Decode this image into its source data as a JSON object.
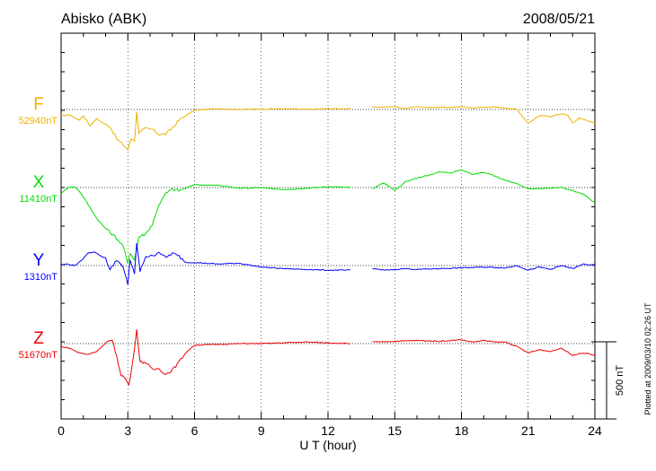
{
  "chart_data": {
    "type": "line",
    "title": "Abisko (ABK)",
    "date": "2008/05/21",
    "xlabel": "U T (hour)",
    "xlim": [
      0,
      24
    ],
    "x_ticks": [
      "0",
      "3",
      "6",
      "9",
      "12",
      "15",
      "18",
      "21",
      "24"
    ],
    "scale_bar_label": "500 nT",
    "scale_bar_nT": 500,
    "plotted_note": "Plotted at 2009/03/10 02:26 UT",
    "data_gap_ut": [
      13.0,
      14.0
    ],
    "series": [
      {
        "name": "F",
        "baseline_label": "52940nT",
        "baseline_nT": 52940,
        "color": "#f0b000",
        "points": [
          [
            0,
            -40
          ],
          [
            0.4,
            -35
          ],
          [
            0.8,
            -70
          ],
          [
            1,
            -40
          ],
          [
            1.3,
            -105
          ],
          [
            1.6,
            -60
          ],
          [
            1.9,
            -90
          ],
          [
            2.2,
            -110
          ],
          [
            2.5,
            -190
          ],
          [
            2.8,
            -230
          ],
          [
            3.0,
            -260
          ],
          [
            3.15,
            -190
          ],
          [
            3.3,
            -200
          ],
          [
            3.4,
            -20
          ],
          [
            3.5,
            -150
          ],
          [
            3.8,
            -125
          ],
          [
            4.1,
            -130
          ],
          [
            4.4,
            -160
          ],
          [
            4.7,
            -160
          ],
          [
            5.0,
            -120
          ],
          [
            5.3,
            -70
          ],
          [
            5.6,
            -40
          ],
          [
            6.0,
            -5
          ],
          [
            7,
            5
          ],
          [
            8,
            0
          ],
          [
            9,
            3
          ],
          [
            10,
            5
          ],
          [
            11,
            0
          ],
          [
            12,
            5
          ],
          [
            13,
            5
          ],
          [
            14,
            15
          ],
          [
            15,
            18
          ],
          [
            15.5,
            5
          ],
          [
            16,
            20
          ],
          [
            16.5,
            10
          ],
          [
            17,
            15
          ],
          [
            17.5,
            12
          ],
          [
            18,
            18
          ],
          [
            18.5,
            10
          ],
          [
            19,
            15
          ],
          [
            19.5,
            15
          ],
          [
            20,
            10
          ],
          [
            20.5,
            0
          ],
          [
            21,
            -90
          ],
          [
            21.5,
            -40
          ],
          [
            22,
            -45
          ],
          [
            22.5,
            -30
          ],
          [
            22.8,
            -40
          ],
          [
            23,
            -90
          ],
          [
            23.3,
            -55
          ],
          [
            23.6,
            -70
          ],
          [
            24,
            -90
          ]
        ]
      },
      {
        "name": "X",
        "baseline_label": "11410nT",
        "baseline_nT": 11410,
        "color": "#00dd00",
        "points": [
          [
            0,
            -40
          ],
          [
            0.3,
            0
          ],
          [
            0.6,
            5
          ],
          [
            0.8,
            -20
          ],
          [
            1.0,
            -60
          ],
          [
            1.3,
            -130
          ],
          [
            1.6,
            -200
          ],
          [
            1.9,
            -250
          ],
          [
            2.2,
            -290
          ],
          [
            2.5,
            -330
          ],
          [
            2.8,
            -380
          ],
          [
            3.0,
            -500
          ],
          [
            3.1,
            -420
          ],
          [
            3.3,
            -470
          ],
          [
            3.5,
            -320
          ],
          [
            3.8,
            -300
          ],
          [
            4.1,
            -240
          ],
          [
            4.4,
            -110
          ],
          [
            4.7,
            -40
          ],
          [
            5.0,
            -10
          ],
          [
            5.3,
            -20
          ],
          [
            5.6,
            -5
          ],
          [
            6,
            20
          ],
          [
            6.5,
            15
          ],
          [
            7,
            15
          ],
          [
            8,
            -5
          ],
          [
            9,
            0
          ],
          [
            10,
            -15
          ],
          [
            11,
            -5
          ],
          [
            12,
            5
          ],
          [
            13,
            0
          ],
          [
            14,
            -10
          ],
          [
            14.5,
            30
          ],
          [
            15,
            -20
          ],
          [
            15.5,
            40
          ],
          [
            16,
            60
          ],
          [
            16.5,
            80
          ],
          [
            17,
            100
          ],
          [
            17.5,
            95
          ],
          [
            18,
            115
          ],
          [
            18.5,
            85
          ],
          [
            19,
            100
          ],
          [
            19.5,
            75
          ],
          [
            20,
            45
          ],
          [
            20.5,
            25
          ],
          [
            21,
            -10
          ],
          [
            21.5,
            -5
          ],
          [
            22,
            -5
          ],
          [
            22.5,
            0
          ],
          [
            23,
            -20
          ],
          [
            23.5,
            -45
          ],
          [
            24,
            -100
          ]
        ]
      },
      {
        "name": "Y",
        "baseline_label": "1310nT",
        "baseline_nT": 1310,
        "color": "#0000ff",
        "points": [
          [
            0,
            5
          ],
          [
            0.3,
            10
          ],
          [
            0.6,
            0
          ],
          [
            0.9,
            30
          ],
          [
            1.2,
            80
          ],
          [
            1.5,
            90
          ],
          [
            1.8,
            60
          ],
          [
            2.0,
            50
          ],
          [
            2.2,
            -30
          ],
          [
            2.5,
            40
          ],
          [
            2.8,
            -20
          ],
          [
            3.0,
            -120
          ],
          [
            3.1,
            40
          ],
          [
            3.3,
            -60
          ],
          [
            3.4,
            150
          ],
          [
            3.55,
            -40
          ],
          [
            3.8,
            60
          ],
          [
            4.1,
            60
          ],
          [
            4.4,
            90
          ],
          [
            4.7,
            50
          ],
          [
            5.0,
            80
          ],
          [
            5.3,
            60
          ],
          [
            5.6,
            20
          ],
          [
            6,
            20
          ],
          [
            7,
            10
          ],
          [
            8,
            15
          ],
          [
            9,
            -10
          ],
          [
            10,
            -20
          ],
          [
            11,
            -25
          ],
          [
            12,
            -30
          ],
          [
            13,
            -30
          ],
          [
            14,
            -20
          ],
          [
            14.5,
            -30
          ],
          [
            15,
            -25
          ],
          [
            15.5,
            -20
          ],
          [
            16,
            -25
          ],
          [
            17,
            -20
          ],
          [
            18,
            -15
          ],
          [
            19,
            -10
          ],
          [
            20,
            -15
          ],
          [
            20.5,
            0
          ],
          [
            21,
            -30
          ],
          [
            21.5,
            -10
          ],
          [
            22,
            -25
          ],
          [
            22.5,
            0
          ],
          [
            23,
            -20
          ],
          [
            23.5,
            10
          ],
          [
            24,
            0
          ]
        ]
      },
      {
        "name": "Z",
        "baseline_label": "51670nT",
        "baseline_nT": 51670,
        "color": "#ee0000",
        "points": [
          [
            0,
            -20
          ],
          [
            0.4,
            -30
          ],
          [
            0.8,
            -60
          ],
          [
            1.2,
            -70
          ],
          [
            1.6,
            -50
          ],
          [
            2.0,
            0
          ],
          [
            2.3,
            30
          ],
          [
            2.5,
            -90
          ],
          [
            2.7,
            -200
          ],
          [
            2.9,
            -230
          ],
          [
            3.05,
            -270
          ],
          [
            3.2,
            -140
          ],
          [
            3.4,
            90
          ],
          [
            3.55,
            -120
          ],
          [
            3.8,
            -120
          ],
          [
            4.1,
            -170
          ],
          [
            4.4,
            -160
          ],
          [
            4.7,
            -200
          ],
          [
            5.0,
            -170
          ],
          [
            5.3,
            -120
          ],
          [
            5.6,
            -60
          ],
          [
            6,
            -10
          ],
          [
            7,
            -5
          ],
          [
            8,
            0
          ],
          [
            9,
            0
          ],
          [
            10,
            5
          ],
          [
            11,
            10
          ],
          [
            12,
            5
          ],
          [
            13,
            0
          ],
          [
            14,
            10
          ],
          [
            15,
            15
          ],
          [
            16,
            20
          ],
          [
            17,
            15
          ],
          [
            18,
            25
          ],
          [
            18.5,
            10
          ],
          [
            19,
            20
          ],
          [
            19.5,
            10
          ],
          [
            20,
            10
          ],
          [
            20.5,
            -20
          ],
          [
            21,
            -60
          ],
          [
            21.5,
            -40
          ],
          [
            22,
            -50
          ],
          [
            22.5,
            -30
          ],
          [
            23,
            -75
          ],
          [
            23.5,
            -60
          ],
          [
            24,
            -75
          ]
        ]
      }
    ]
  }
}
